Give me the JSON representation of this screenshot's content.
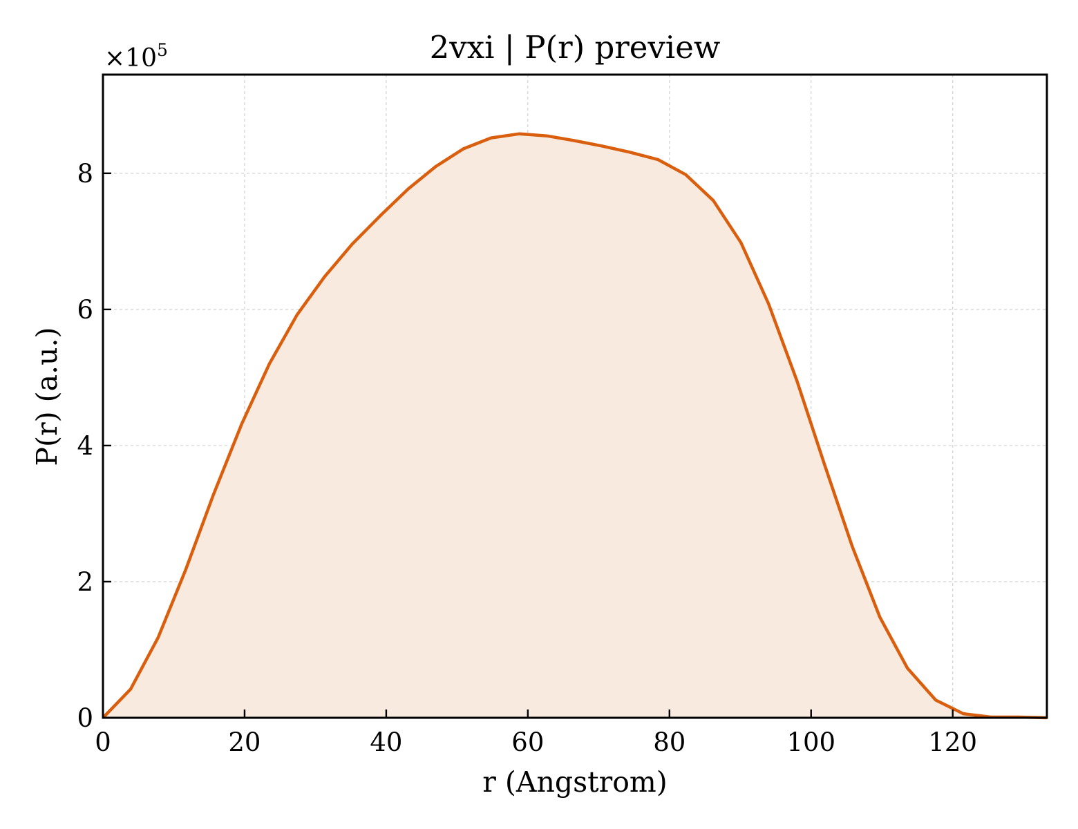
{
  "chart_data": {
    "type": "area",
    "title": "2vxi | P(r) preview",
    "xlabel": "r (Angstrom)",
    "ylabel": "P(r) (a.u.)",
    "y_multiplier_label": "×10",
    "y_multiplier_exponent": "5",
    "xlim": [
      0,
      133.3
    ],
    "ylim": [
      0,
      9.45
    ],
    "x_ticks": [
      0,
      20,
      40,
      60,
      80,
      100,
      120
    ],
    "y_ticks": [
      0,
      2,
      4,
      6,
      8
    ],
    "grid": true,
    "colors": {
      "line": "#d95f0e",
      "fill": "#f8eadf",
      "grid": "#d0d0d0"
    },
    "series": [
      {
        "x": [
          0,
          3.9,
          7.8,
          11.7,
          15.6,
          19.6,
          23.5,
          27.4,
          31.3,
          35.2,
          39.2,
          43.1,
          47.0,
          50.9,
          54.8,
          58.8,
          62.7,
          66.6,
          70.5,
          74.4,
          78.4,
          82.3,
          86.2,
          90.1,
          94.0,
          98.0,
          101.9,
          105.8,
          109.7,
          113.6,
          117.6,
          121.5,
          125.4,
          129.3,
          133.3
        ],
        "y": [
          0.0,
          0.42,
          1.18,
          2.18,
          3.28,
          4.32,
          5.2,
          5.92,
          6.48,
          6.96,
          7.38,
          7.77,
          8.1,
          8.36,
          8.52,
          8.58,
          8.55,
          8.48,
          8.4,
          8.31,
          8.2,
          7.98,
          7.6,
          6.98,
          6.08,
          4.95,
          3.72,
          2.52,
          1.48,
          0.73,
          0.26,
          0.06,
          0.01,
          0.01,
          0.0
        ]
      }
    ]
  }
}
